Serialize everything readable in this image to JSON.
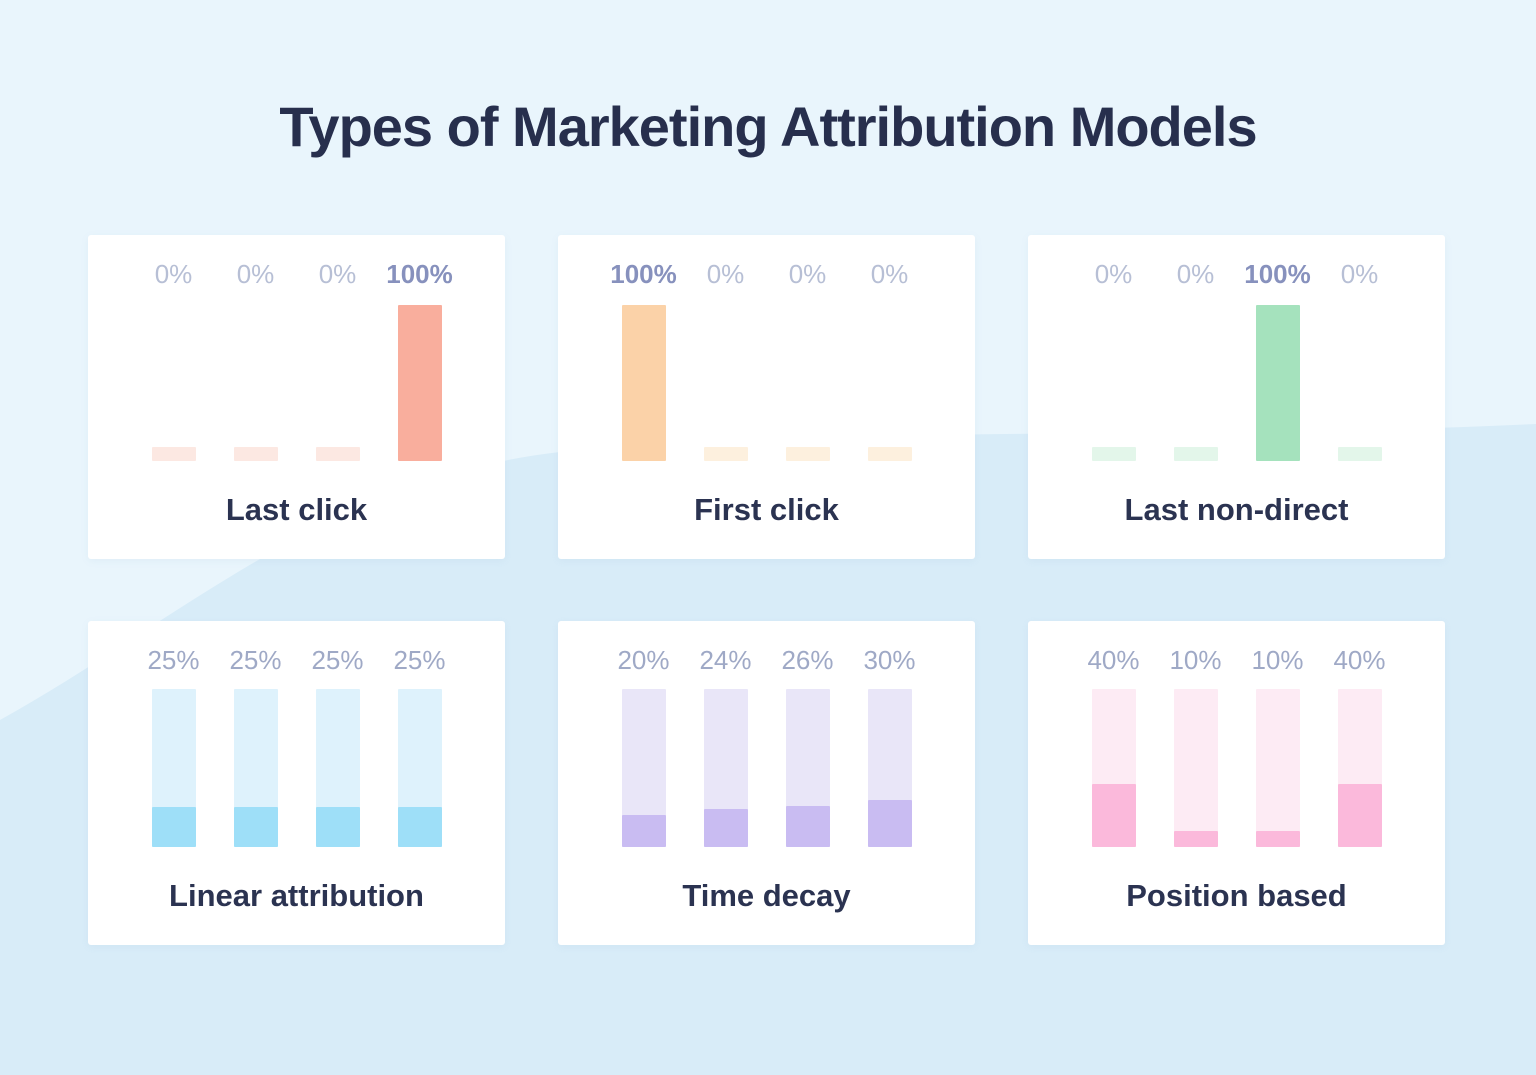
{
  "page": {
    "title": "Types of Marketing Attribution Models",
    "colors": {
      "background_light": "#e9f5fc",
      "background_wave": "#d8ecf8",
      "card_background": "#ffffff",
      "title_text": "#272f4d",
      "card_title_text": "#2b3351",
      "label_zero": "#b7bfd5",
      "label_highlight": "#8791bd",
      "label_mid": "#9fa9c6"
    }
  },
  "cards": [
    {
      "id": "last-click",
      "title": "Last click",
      "type": "spike",
      "values": [
        0,
        0,
        0,
        100
      ],
      "labels": [
        "0%",
        "0%",
        "0%",
        "100%"
      ],
      "bar_color": "#f9ae9d",
      "faint_color": "#fce8e2"
    },
    {
      "id": "first-click",
      "title": "First click",
      "type": "spike",
      "values": [
        100,
        0,
        0,
        0
      ],
      "labels": [
        "100%",
        "0%",
        "0%",
        "0%"
      ],
      "bar_color": "#fbd2a8",
      "faint_color": "#fdf0de"
    },
    {
      "id": "last-non-direct",
      "title": "Last non-direct",
      "type": "spike",
      "values": [
        0,
        0,
        100,
        0
      ],
      "labels": [
        "0%",
        "0%",
        "100%",
        "0%"
      ],
      "bar_color": "#a5e2bd",
      "faint_color": "#e3f6ea"
    },
    {
      "id": "linear-attribution",
      "title": "Linear attribution",
      "type": "track",
      "values": [
        25,
        25,
        25,
        25
      ],
      "labels": [
        "25%",
        "25%",
        "25%",
        "25%"
      ],
      "bar_color": "#9edff8",
      "faint_color": "#def2fc"
    },
    {
      "id": "time-decay",
      "title": "Time decay",
      "type": "track",
      "values": [
        20,
        24,
        26,
        30
      ],
      "labels": [
        "20%",
        "24%",
        "26%",
        "30%"
      ],
      "bar_color": "#c9bcf2",
      "faint_color": "#e9e6f8"
    },
    {
      "id": "position-based",
      "title": "Position based",
      "type": "track",
      "values": [
        40,
        10,
        10,
        40
      ],
      "labels": [
        "40%",
        "10%",
        "10%",
        "40%"
      ],
      "bar_color": "#fbb9db",
      "faint_color": "#fdebf4"
    }
  ],
  "chart_data": [
    {
      "type": "bar",
      "title": "Last click",
      "values": [
        0,
        0,
        0,
        100
      ],
      "data_labels": [
        "0%",
        "0%",
        "0%",
        "100%"
      ],
      "ylim": [
        0,
        100
      ],
      "bar_color": "#f9ae9d",
      "grid": false,
      "legend": false
    },
    {
      "type": "bar",
      "title": "First click",
      "values": [
        100,
        0,
        0,
        0
      ],
      "data_labels": [
        "100%",
        "0%",
        "0%",
        "0%"
      ],
      "ylim": [
        0,
        100
      ],
      "bar_color": "#fbd2a8",
      "grid": false,
      "legend": false
    },
    {
      "type": "bar",
      "title": "Last non-direct",
      "values": [
        0,
        0,
        100,
        0
      ],
      "data_labels": [
        "0%",
        "0%",
        "100%",
        "0%"
      ],
      "ylim": [
        0,
        100
      ],
      "bar_color": "#a5e2bd",
      "grid": false,
      "legend": false
    },
    {
      "type": "bar",
      "title": "Linear attribution",
      "values": [
        25,
        25,
        25,
        25
      ],
      "data_labels": [
        "25%",
        "25%",
        "25%",
        "25%"
      ],
      "ylim": [
        0,
        100
      ],
      "bar_color": "#9edff8",
      "grid": false,
      "legend": false
    },
    {
      "type": "bar",
      "title": "Time decay",
      "values": [
        20,
        24,
        26,
        30
      ],
      "data_labels": [
        "20%",
        "24%",
        "26%",
        "30%"
      ],
      "ylim": [
        0,
        100
      ],
      "bar_color": "#c9bcf2",
      "grid": false,
      "legend": false
    },
    {
      "type": "bar",
      "title": "Position based",
      "values": [
        40,
        10,
        10,
        40
      ],
      "data_labels": [
        "40%",
        "10%",
        "10%",
        "40%"
      ],
      "ylim": [
        0,
        100
      ],
      "bar_color": "#fbb9db",
      "grid": false,
      "legend": false
    }
  ]
}
